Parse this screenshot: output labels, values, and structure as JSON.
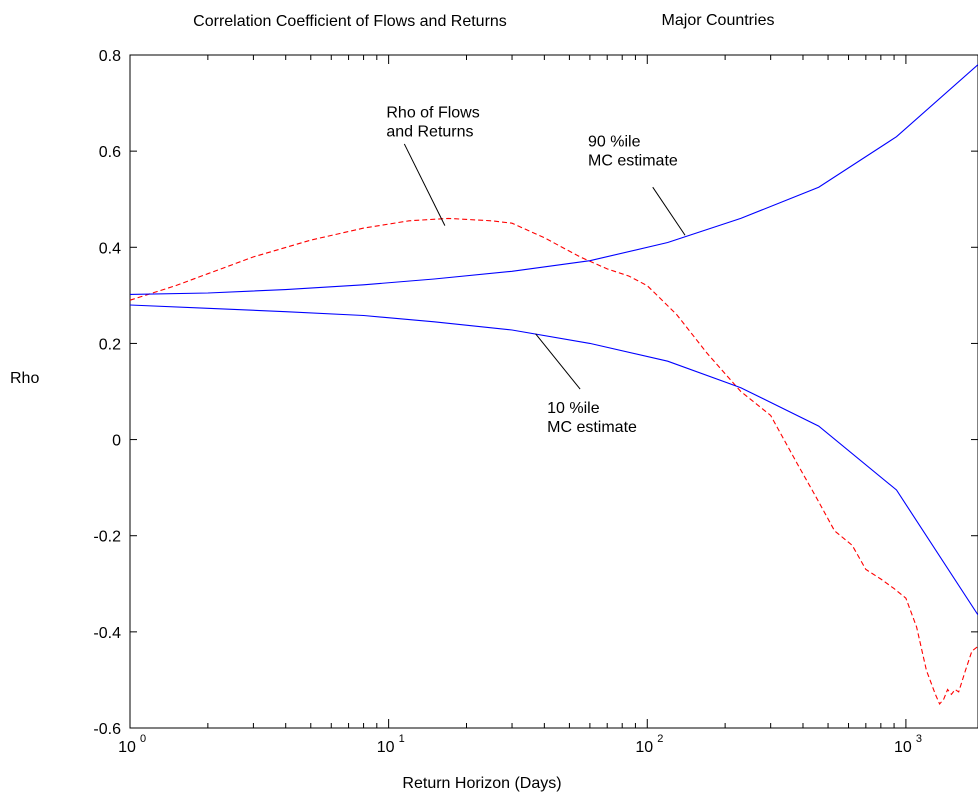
{
  "chart_data": {
    "type": "line",
    "title": "Correlation Coefficient of Flows and Returns",
    "subtitle": "Major Countries",
    "xlabel": "Return Horizon (Days)",
    "ylabel": "Rho",
    "xscale": "log",
    "xlim": [
      1,
      1900
    ],
    "ylim": [
      -0.6,
      0.8
    ],
    "xticks": [
      1,
      10,
      100,
      1000
    ],
    "xtick_labels": [
      {
        "base": "10",
        "exp": "0"
      },
      {
        "base": "10",
        "exp": "1"
      },
      {
        "base": "10",
        "exp": "2"
      },
      {
        "base": "10",
        "exp": "3"
      }
    ],
    "yticks": [
      -0.6,
      -0.4,
      -0.2,
      0,
      0.2,
      0.4,
      0.6,
      0.8
    ],
    "ytick_labels": [
      "-0.6",
      "-0.4",
      "-0.2",
      "0",
      "0.2",
      "0.4",
      "0.6",
      "0.8"
    ],
    "grid": false,
    "series": [
      {
        "color": "#ff0000",
        "style": "dashed",
        "x": [
          1,
          1.5,
          2,
          3,
          5,
          8,
          12,
          17,
          25,
          30,
          40,
          55,
          70,
          85,
          100,
          130,
          170,
          230,
          300,
          380,
          450,
          530,
          620,
          700,
          800,
          900,
          1000,
          1100,
          1200,
          1300,
          1350,
          1400,
          1450,
          1500,
          1550,
          1600,
          1700,
          1800,
          1900
        ],
        "y": [
          0.29,
          0.32,
          0.345,
          0.38,
          0.415,
          0.44,
          0.455,
          0.46,
          0.455,
          0.45,
          0.42,
          0.38,
          0.355,
          0.34,
          0.32,
          0.26,
          0.18,
          0.1,
          0.05,
          -0.05,
          -0.12,
          -0.19,
          -0.22,
          -0.27,
          -0.29,
          -0.31,
          -0.33,
          -0.39,
          -0.48,
          -0.53,
          -0.55,
          -0.54,
          -0.52,
          -0.53,
          -0.52,
          -0.525,
          -0.48,
          -0.44,
          -0.43
        ]
      },
      {
        "color": "#0000ff",
        "style": "solid",
        "x": [
          1,
          2,
          4,
          8,
          15,
          30,
          60,
          120,
          230,
          460,
          920,
          1900
        ],
        "y": [
          0.302,
          0.305,
          0.312,
          0.322,
          0.334,
          0.35,
          0.372,
          0.41,
          0.46,
          0.525,
          0.63,
          0.78
        ]
      },
      {
        "color": "#0000ff",
        "style": "solid",
        "x": [
          1,
          2,
          4,
          8,
          15,
          30,
          60,
          120,
          230,
          460,
          920,
          1900
        ],
        "y": [
          0.28,
          0.273,
          0.266,
          0.258,
          0.245,
          0.228,
          0.2,
          0.163,
          0.108,
          0.028,
          -0.105,
          -0.365
        ]
      }
    ],
    "annotations": [
      {
        "lines": [
          "Rho of Flows",
          "and Returns"
        ],
        "text_at": [
          9.8,
          0.67
        ],
        "arrow_from": [
          11.5,
          0.615
        ],
        "arrow_to": [
          16.5,
          0.445
        ]
      },
      {
        "lines": [
          "90 %ile",
          "MC estimate"
        ],
        "text_at": [
          59,
          0.61
        ],
        "arrow_from": [
          105,
          0.525
        ],
        "arrow_to": [
          140,
          0.425
        ]
      },
      {
        "lines": [
          "10 %ile",
          "MC estimate"
        ],
        "text_at": [
          41,
          0.055
        ],
        "arrow_from": [
          55,
          0.105
        ],
        "arrow_to": [
          37,
          0.22
        ]
      }
    ]
  }
}
